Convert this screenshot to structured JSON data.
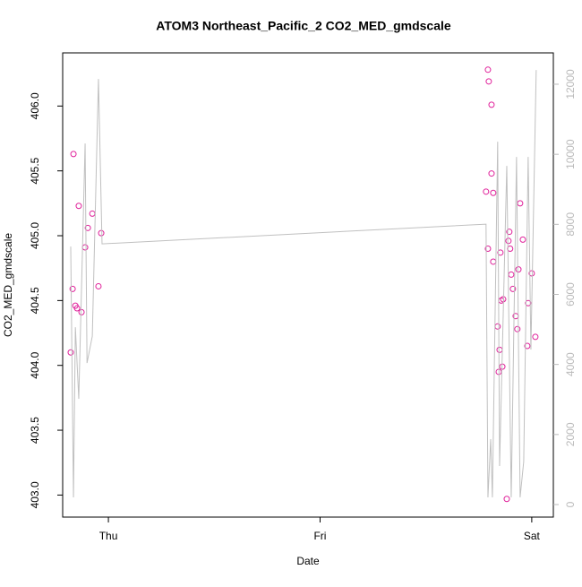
{
  "chart_data": {
    "type": "scatter",
    "title": "ATOM3 Northeast_Pacific_2 CO2_MED_gmdscale",
    "x_label": "Date",
    "y_label": "CO2_MED_gmdscale",
    "xlim": [
      -0.216,
      2.102
    ],
    "xticks": [
      {
        "value": 0,
        "label": "Thu"
      },
      {
        "value": 1,
        "label": "Fri"
      },
      {
        "value": 2,
        "label": "Sat"
      }
    ],
    "ylim": [
      402.83,
      406.41
    ],
    "yticks": [
      {
        "value": 403,
        "label": "403.0"
      },
      403.5,
      {
        "value": 404,
        "label": "404.0"
      },
      404.5,
      {
        "value": 405,
        "label": "405.0"
      },
      405.5,
      {
        "value": 406,
        "label": "406.0"
      }
    ],
    "y2lim": [
      -358,
      12895
    ],
    "y2ticks": [
      0,
      2000,
      4000,
      6000,
      8000,
      10000,
      12000
    ],
    "series": [
      {
        "type": "scatter",
        "color": "#e0209a",
        "x": [
          -0.178,
          -0.169,
          -0.165,
          -0.156,
          -0.148,
          -0.14,
          -0.127,
          -0.11,
          -0.097,
          -0.076,
          -0.047,
          -0.034,
          1.793,
          1.797,
          1.81,
          1.784,
          1.81,
          1.818,
          1.793,
          1.818,
          1.839,
          1.848,
          1.844,
          1.852,
          1.856,
          1.865,
          1.861,
          1.882,
          1.89,
          1.894,
          1.898,
          1.903,
          1.911,
          1.924,
          1.932,
          1.937,
          1.945,
          1.958,
          1.979,
          1.983,
          2.0,
          2.017
        ],
        "values": [
          404.1,
          404.59,
          405.63,
          404.46,
          404.44,
          405.23,
          404.41,
          404.91,
          405.06,
          405.17,
          404.61,
          405.02,
          406.28,
          406.19,
          406.01,
          405.34,
          405.48,
          405.33,
          404.9,
          404.8,
          404.3,
          404.12,
          403.95,
          404.87,
          404.5,
          404.51,
          403.99,
          402.97,
          404.96,
          405.03,
          404.9,
          404.7,
          404.59,
          404.38,
          404.28,
          404.74,
          405.25,
          404.97,
          404.15,
          404.48,
          404.71,
          404.22
        ]
      },
      {
        "type": "line",
        "axis": "y2",
        "color": "#c0c0c0",
        "x": [
          -0.178,
          -0.165,
          -0.156,
          -0.14,
          -0.11,
          -0.101,
          -0.076,
          -0.047,
          -0.03,
          1.784,
          1.793,
          1.806,
          1.814,
          1.839,
          1.848,
          1.882,
          1.903,
          1.928,
          1.945,
          1.962,
          1.983,
          1.996,
          2.021
        ],
        "values": [
          7365,
          205,
          5063,
          3018,
          10307,
          4041,
          4808,
          12148,
          7442,
          8005,
          205,
          1867,
          205,
          10358,
          1100,
          9667,
          205,
          9923,
          205,
          1228,
          9923,
          4425,
          12404
        ]
      }
    ]
  }
}
